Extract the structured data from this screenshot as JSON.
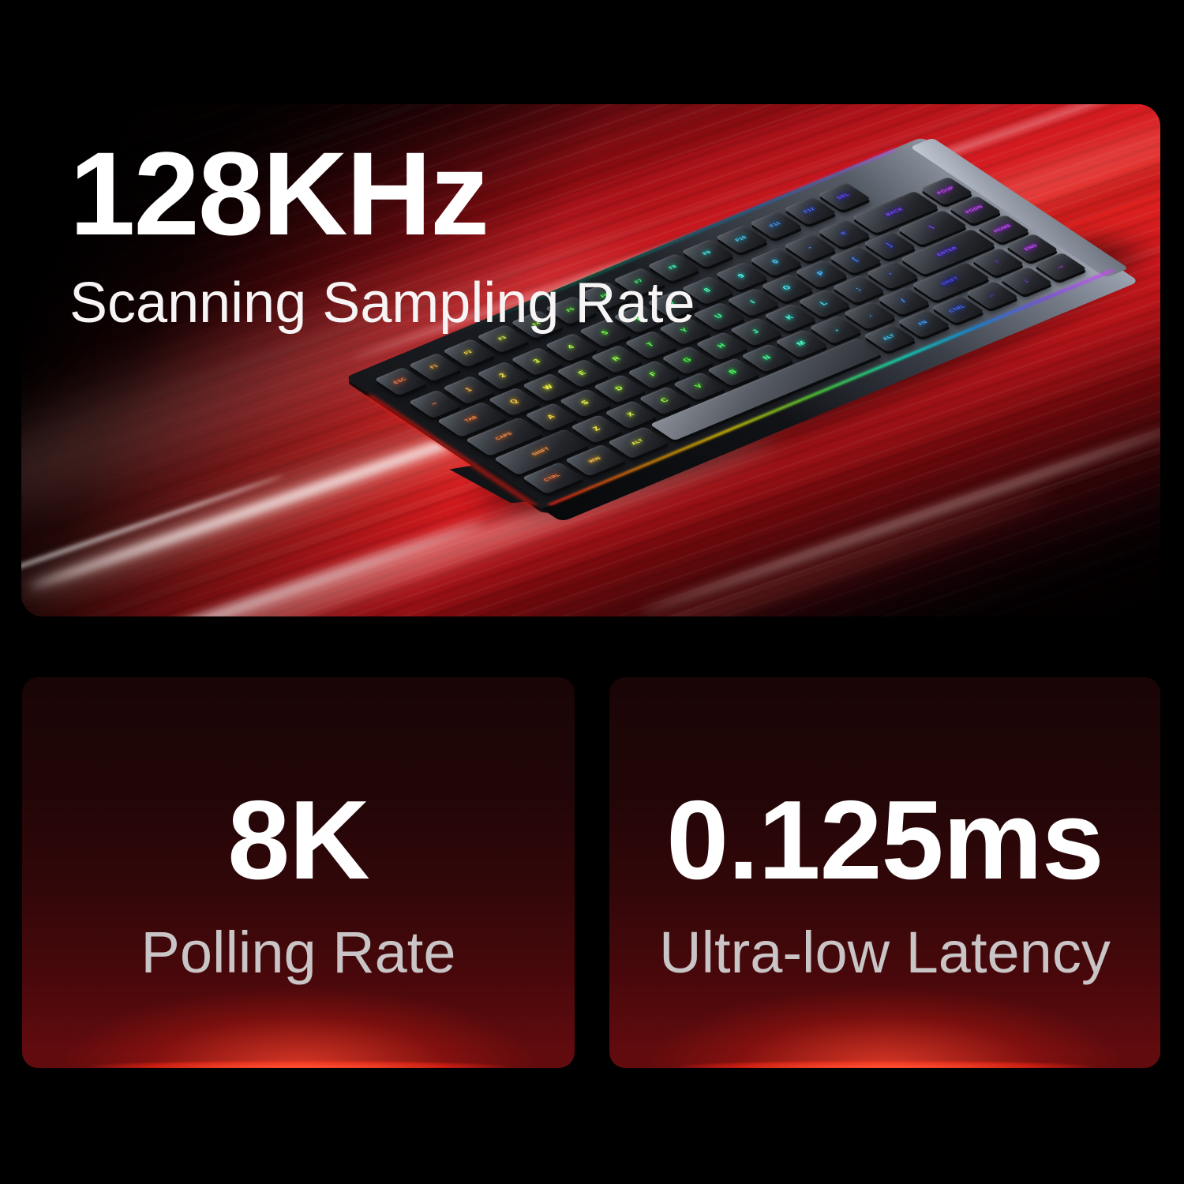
{
  "hero": {
    "title": "128KHz",
    "subtitle": "Scanning Sampling Rate"
  },
  "stats": [
    {
      "value": "8K",
      "label": "Polling Rate"
    },
    {
      "value": "0.125ms",
      "label": "Ultra-low Latency"
    }
  ],
  "colors": {
    "background": "#000000",
    "accent_red": "#e2231f",
    "panel_top": "#190506",
    "panel_bottom": "#620b0e",
    "panel_glow": "#ff5a35",
    "text_primary": "#ffffff",
    "text_secondary": "#c9c4c5"
  },
  "keyboard": {
    "style": "75% RGB backlit mechanical keyboard, charcoal keycaps, rainbow legend glow (red left to purple right), silver case edge",
    "rows": [
      {
        "keys": [
          {
            "l": "ESC"
          },
          {
            "l": "F1"
          },
          {
            "l": "F2"
          },
          {
            "l": "F3"
          },
          {
            "l": "F4"
          },
          {
            "l": "F5"
          },
          {
            "l": "F6"
          },
          {
            "l": "F7"
          },
          {
            "l": "F8"
          },
          {
            "l": "F9"
          },
          {
            "l": "F10"
          },
          {
            "l": "F11"
          },
          {
            "l": "F12"
          },
          {
            "l": "DEL"
          }
        ]
      },
      {
        "keys": [
          {
            "l": "~"
          },
          {
            "l": "1"
          },
          {
            "l": "2"
          },
          {
            "l": "3"
          },
          {
            "l": "4"
          },
          {
            "l": "5"
          },
          {
            "l": "6"
          },
          {
            "l": "7"
          },
          {
            "l": "8"
          },
          {
            "l": "9"
          },
          {
            "l": "0"
          },
          {
            "l": "-"
          },
          {
            "l": "="
          },
          {
            "l": "BACK",
            "w": 2
          },
          {
            "l": "PGUP"
          }
        ]
      },
      {
        "keys": [
          {
            "l": "TAB",
            "w": 1.5
          },
          {
            "l": "Q"
          },
          {
            "l": "W"
          },
          {
            "l": "E"
          },
          {
            "l": "R"
          },
          {
            "l": "T"
          },
          {
            "l": "Y"
          },
          {
            "l": "U"
          },
          {
            "l": "I"
          },
          {
            "l": "O"
          },
          {
            "l": "P"
          },
          {
            "l": "["
          },
          {
            "l": "]"
          },
          {
            "l": "\\",
            "w": 1.5
          },
          {
            "l": "PGDN"
          }
        ]
      },
      {
        "keys": [
          {
            "l": "CAPS",
            "w": 1.75
          },
          {
            "l": "A"
          },
          {
            "l": "S"
          },
          {
            "l": "D"
          },
          {
            "l": "F"
          },
          {
            "l": "G"
          },
          {
            "l": "H"
          },
          {
            "l": "J"
          },
          {
            "l": "K"
          },
          {
            "l": "L"
          },
          {
            "l": ";"
          },
          {
            "l": "'"
          },
          {
            "l": "ENTER",
            "w": 2.25
          },
          {
            "l": "HOME"
          }
        ]
      },
      {
        "keys": [
          {
            "l": "SHIFT",
            "w": 2.25
          },
          {
            "l": "Z"
          },
          {
            "l": "X"
          },
          {
            "l": "C"
          },
          {
            "l": "V"
          },
          {
            "l": "B"
          },
          {
            "l": "N"
          },
          {
            "l": "M"
          },
          {
            "l": ","
          },
          {
            "l": "."
          },
          {
            "l": "/"
          },
          {
            "l": "SHIFT",
            "w": 1.75
          },
          {
            "l": "↑"
          },
          {
            "l": "END"
          }
        ]
      },
      {
        "keys": [
          {
            "l": "CTRL",
            "w": 1.25
          },
          {
            "l": "WIN",
            "w": 1.25
          },
          {
            "l": "ALT",
            "w": 1.25
          },
          {
            "l": "",
            "w": 6.25
          },
          {
            "l": "ALT"
          },
          {
            "l": "FN"
          },
          {
            "l": "CTRL"
          },
          {
            "l": "←"
          },
          {
            "l": "↓"
          },
          {
            "l": "→"
          }
        ]
      }
    ]
  }
}
